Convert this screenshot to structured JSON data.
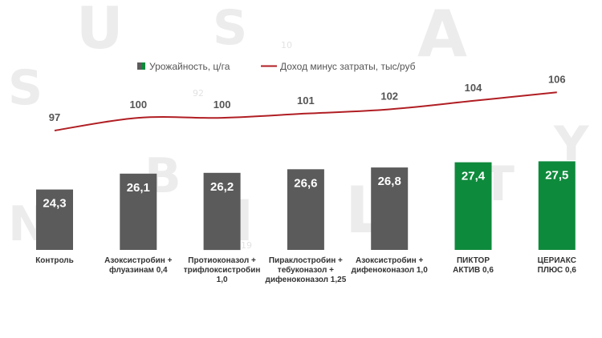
{
  "chart_data": {
    "type": "bar",
    "categories": [
      [
        "Контроль"
      ],
      [
        "Азоксистробин +",
        "флуазинам 0,4"
      ],
      [
        "Протиоконазол +",
        "трифлоксистробин",
        "1,0"
      ],
      [
        "Пираклостробин +",
        "тебуконазол +",
        "дифеноконазол 1,25"
      ],
      [
        "Азоксистробин +",
        "дифеноконазол 1,0"
      ],
      [
        "ПИКТОР",
        "АКТИВ 0,6"
      ],
      [
        "ЦЕРИАКС",
        "ПЛЮС 0,6"
      ]
    ],
    "series": [
      {
        "name": "Урожайность, ц/га",
        "type": "bar",
        "values": [
          24.3,
          26.1,
          26.2,
          26.6,
          26.8,
          27.4,
          27.5
        ],
        "labels": [
          "24,3",
          "26,1",
          "26,2",
          "26,6",
          "26,8",
          "27,4",
          "27,5"
        ],
        "colors": [
          "#5b5b5b",
          "#5b5b5b",
          "#5b5b5b",
          "#5b5b5b",
          "#5b5b5b",
          "#0e8a3c",
          "#0e8a3c"
        ]
      },
      {
        "name": "Доход минус затраты, тыс/руб",
        "type": "line",
        "values": [
          97,
          100,
          100,
          101,
          102,
          104,
          106
        ],
        "labels": [
          "97",
          "100",
          "100",
          "101",
          "102",
          "104",
          "106"
        ],
        "color": "#b01e23"
      }
    ],
    "legend_position": "top",
    "grid": false
  },
  "colors": {
    "bar_grey": "#5b5b5b",
    "bar_green": "#0e8a3c",
    "line_red": "#b01e23"
  }
}
